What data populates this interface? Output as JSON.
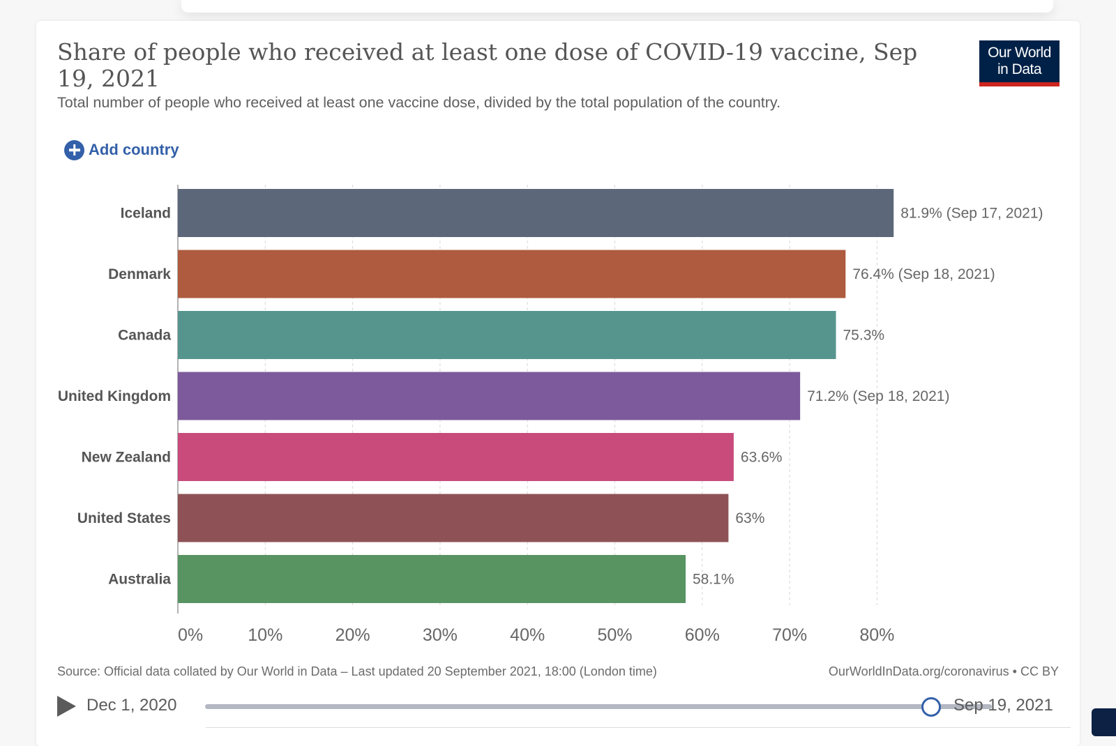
{
  "title": "Share of people who received at least one dose of COVID-19 vaccine, Sep 19, 2021",
  "subtitle": "Total number of people who received at least one vaccine dose, divided by the total population of the country.",
  "logo": {
    "line1": "Our World",
    "line2": "in Data"
  },
  "add_country_label": "Add country",
  "chart_data": {
    "type": "bar",
    "orientation": "horizontal",
    "categories": [
      "Iceland",
      "Denmark",
      "Canada",
      "United Kingdom",
      "New Zealand",
      "United States",
      "Australia"
    ],
    "values": [
      81.9,
      76.4,
      75.3,
      71.2,
      63.6,
      63,
      58.1
    ],
    "value_labels": [
      "81.9% (Sep 17, 2021)",
      "76.4% (Sep 18, 2021)",
      "75.3%",
      "71.2% (Sep 18, 2021)",
      "63.6%",
      "63%",
      "58.1%"
    ],
    "colors": [
      "#5c6779",
      "#ae5b3f",
      "#56958e",
      "#7d5a9b",
      "#c84b7b",
      "#8e5256",
      "#579462"
    ],
    "xlim": [
      0,
      80
    ],
    "xticks": [
      0,
      10,
      20,
      30,
      40,
      50,
      60,
      70,
      80
    ],
    "xtick_labels": [
      "0%",
      "10%",
      "20%",
      "30%",
      "40%",
      "50%",
      "60%",
      "70%",
      "80%"
    ],
    "grid": true
  },
  "footer": {
    "source": "Source: Official data collated by Our World in Data – Last updated 20 September 2021, 18:00 (London time)",
    "credit": "OurWorldInData.org/coronavirus • CC BY"
  },
  "timeline": {
    "start_label": "Dec 1, 2020",
    "end_label": "Sep 19, 2021",
    "position": 1.0
  }
}
